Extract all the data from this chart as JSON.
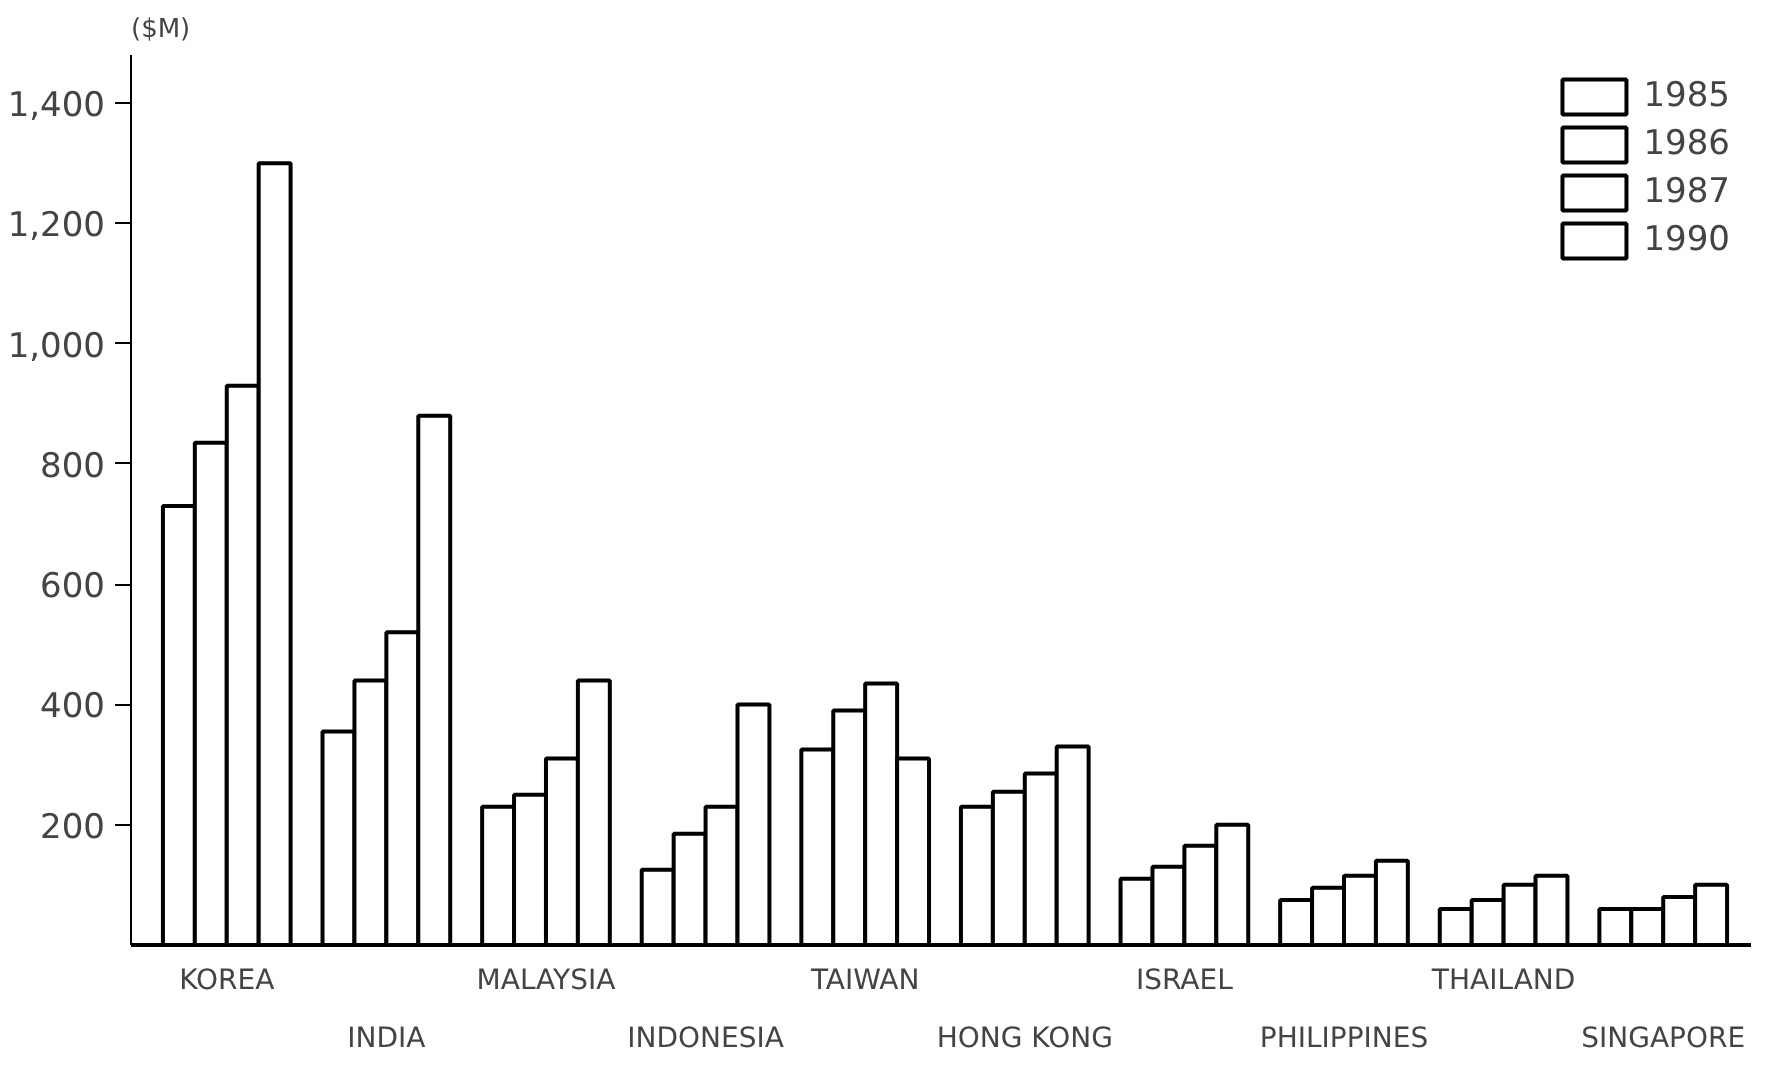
{
  "chart_data": {
    "type": "bar",
    "ylabel": "($M)",
    "categories": [
      "KOREA",
      "INDIA",
      "MALAYSIA",
      "INDONESIA",
      "TAIWAN",
      "HONG KONG",
      "ISRAEL",
      "PHILIPPINES",
      "THAILAND",
      "SINGAPORE"
    ],
    "series": [
      {
        "name": "1985",
        "color": "#ffffff",
        "values": [
          730,
          355,
          230,
          125,
          325,
          230,
          110,
          75,
          60,
          60
        ]
      },
      {
        "name": "1986",
        "color": "#ffffff",
        "values": [
          835,
          440,
          250,
          185,
          390,
          255,
          130,
          95,
          75,
          60
        ]
      },
      {
        "name": "1987",
        "color": "#ffffff",
        "values": [
          930,
          520,
          310,
          230,
          435,
          285,
          165,
          115,
          100,
          80
        ]
      },
      {
        "name": "1990",
        "color": "#ffffff",
        "values": [
          1300,
          880,
          440,
          400,
          310,
          330,
          200,
          140,
          115,
          100
        ]
      }
    ],
    "ylim": [
      0,
      1480
    ],
    "yticks": [
      200,
      400,
      600,
      800,
      {
        "value": 1000,
        "label": "1,000"
      },
      {
        "value": 1200,
        "label": "1,200"
      },
      {
        "value": 1400,
        "label": "1,400"
      }
    ],
    "grid": false,
    "legend": "top right"
  }
}
